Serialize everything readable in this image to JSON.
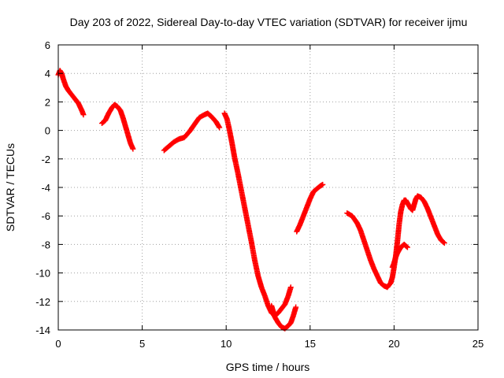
{
  "chart_data": {
    "type": "scatter",
    "title": "Day 203 of 2022, Sidereal Day-to-day VTEC variation (SDTVAR) for receiver ijmu",
    "xlabel": "GPS time / hours",
    "ylabel": "SDTVAR / TECUs",
    "xlim": [
      0,
      25
    ],
    "ylim": [
      -14,
      6
    ],
    "xticks": [
      "0",
      "5",
      "10",
      "15",
      "20",
      "25"
    ],
    "yticks": [
      "-14",
      "-12",
      "-10",
      "-8",
      "-6",
      "-4",
      "-2",
      "0",
      "2",
      "4",
      "6"
    ],
    "grid": true,
    "legend": "none",
    "marker": "plus",
    "color": "#ff0000",
    "segments": [
      {
        "points": [
          [
            0.0,
            3.9
          ],
          [
            0.1,
            4.2
          ],
          [
            0.2,
            4.0
          ],
          [
            0.3,
            3.6
          ],
          [
            0.45,
            3.1
          ],
          [
            0.6,
            2.8
          ],
          [
            0.8,
            2.5
          ],
          [
            1.0,
            2.2
          ],
          [
            1.2,
            1.9
          ],
          [
            1.4,
            1.4
          ],
          [
            1.5,
            1.1
          ]
        ]
      },
      {
        "points": [
          [
            2.6,
            0.5
          ],
          [
            2.8,
            0.7
          ],
          [
            3.0,
            1.2
          ],
          [
            3.2,
            1.6
          ],
          [
            3.35,
            1.8
          ],
          [
            3.5,
            1.7
          ],
          [
            3.7,
            1.4
          ],
          [
            3.85,
            0.9
          ],
          [
            4.0,
            0.3
          ],
          [
            4.15,
            -0.3
          ],
          [
            4.3,
            -0.9
          ],
          [
            4.45,
            -1.3
          ]
        ]
      },
      {
        "points": [
          [
            6.3,
            -1.4
          ],
          [
            6.6,
            -1.1
          ],
          [
            6.9,
            -0.8
          ],
          [
            7.2,
            -0.6
          ],
          [
            7.5,
            -0.5
          ],
          [
            7.8,
            -0.1
          ],
          [
            8.1,
            0.4
          ],
          [
            8.4,
            0.9
          ],
          [
            8.7,
            1.1
          ],
          [
            8.9,
            1.2
          ],
          [
            9.1,
            1.0
          ],
          [
            9.4,
            0.6
          ],
          [
            9.6,
            0.2
          ]
        ]
      },
      {
        "points": [
          [
            9.9,
            1.2
          ],
          [
            10.05,
            0.8
          ],
          [
            10.2,
            0.0
          ],
          [
            10.35,
            -0.9
          ],
          [
            10.5,
            -1.9
          ],
          [
            10.7,
            -3.0
          ],
          [
            10.9,
            -4.2
          ],
          [
            11.1,
            -5.4
          ],
          [
            11.3,
            -6.6
          ],
          [
            11.5,
            -7.8
          ],
          [
            11.7,
            -9.1
          ],
          [
            11.9,
            -10.2
          ],
          [
            12.1,
            -11.0
          ],
          [
            12.3,
            -11.6
          ],
          [
            12.5,
            -12.3
          ],
          [
            12.7,
            -12.8
          ],
          [
            12.9,
            -13.0
          ],
          [
            13.1,
            -12.8
          ],
          [
            13.3,
            -12.5
          ],
          [
            13.5,
            -12.2
          ],
          [
            13.7,
            -11.6
          ],
          [
            13.85,
            -11.0
          ]
        ]
      },
      {
        "points": [
          [
            12.7,
            -12.3
          ],
          [
            12.9,
            -13.1
          ],
          [
            13.1,
            -13.5
          ],
          [
            13.3,
            -13.8
          ],
          [
            13.5,
            -13.9
          ],
          [
            13.7,
            -13.7
          ],
          [
            13.85,
            -13.5
          ],
          [
            14.0,
            -13.0
          ],
          [
            14.15,
            -12.4
          ]
        ]
      },
      {
        "points": [
          [
            14.2,
            -7.1
          ],
          [
            14.4,
            -6.6
          ],
          [
            14.6,
            -6.0
          ],
          [
            14.8,
            -5.4
          ],
          [
            15.0,
            -4.8
          ],
          [
            15.2,
            -4.3
          ],
          [
            15.4,
            -4.1
          ],
          [
            15.6,
            -3.9
          ],
          [
            15.75,
            -3.8
          ]
        ]
      },
      {
        "points": [
          [
            17.2,
            -5.8
          ],
          [
            17.5,
            -6.0
          ],
          [
            17.8,
            -6.5
          ],
          [
            18.0,
            -7.0
          ],
          [
            18.2,
            -7.7
          ],
          [
            18.4,
            -8.4
          ],
          [
            18.6,
            -9.1
          ],
          [
            18.8,
            -9.7
          ],
          [
            19.0,
            -10.2
          ],
          [
            19.2,
            -10.7
          ],
          [
            19.4,
            -10.9
          ],
          [
            19.6,
            -11.0
          ],
          [
            19.8,
            -10.7
          ],
          [
            19.9,
            -10.3
          ],
          [
            20.0,
            -9.6
          ],
          [
            20.1,
            -8.8
          ],
          [
            20.2,
            -7.8
          ],
          [
            20.3,
            -6.6
          ],
          [
            20.4,
            -5.7
          ],
          [
            20.5,
            -5.2
          ],
          [
            20.6,
            -4.9
          ],
          [
            20.7,
            -4.9
          ],
          [
            20.8,
            -5.1
          ],
          [
            20.9,
            -5.3
          ],
          [
            21.0,
            -5.5
          ],
          [
            21.1,
            -5.6
          ],
          [
            21.2,
            -5.2
          ],
          [
            21.3,
            -4.8
          ],
          [
            21.4,
            -4.6
          ],
          [
            21.6,
            -4.7
          ],
          [
            21.8,
            -5.0
          ],
          [
            22.0,
            -5.5
          ],
          [
            22.2,
            -6.1
          ],
          [
            22.4,
            -6.7
          ],
          [
            22.6,
            -7.3
          ],
          [
            22.8,
            -7.7
          ],
          [
            23.0,
            -7.9
          ]
        ]
      },
      {
        "points": [
          [
            19.9,
            -9.6
          ],
          [
            20.0,
            -9.3
          ],
          [
            20.1,
            -8.9
          ],
          [
            20.2,
            -8.6
          ],
          [
            20.3,
            -8.4
          ],
          [
            20.4,
            -8.2
          ],
          [
            20.5,
            -8.1
          ],
          [
            20.6,
            -8.0
          ],
          [
            20.7,
            -8.1
          ],
          [
            20.8,
            -8.2
          ]
        ]
      }
    ]
  }
}
